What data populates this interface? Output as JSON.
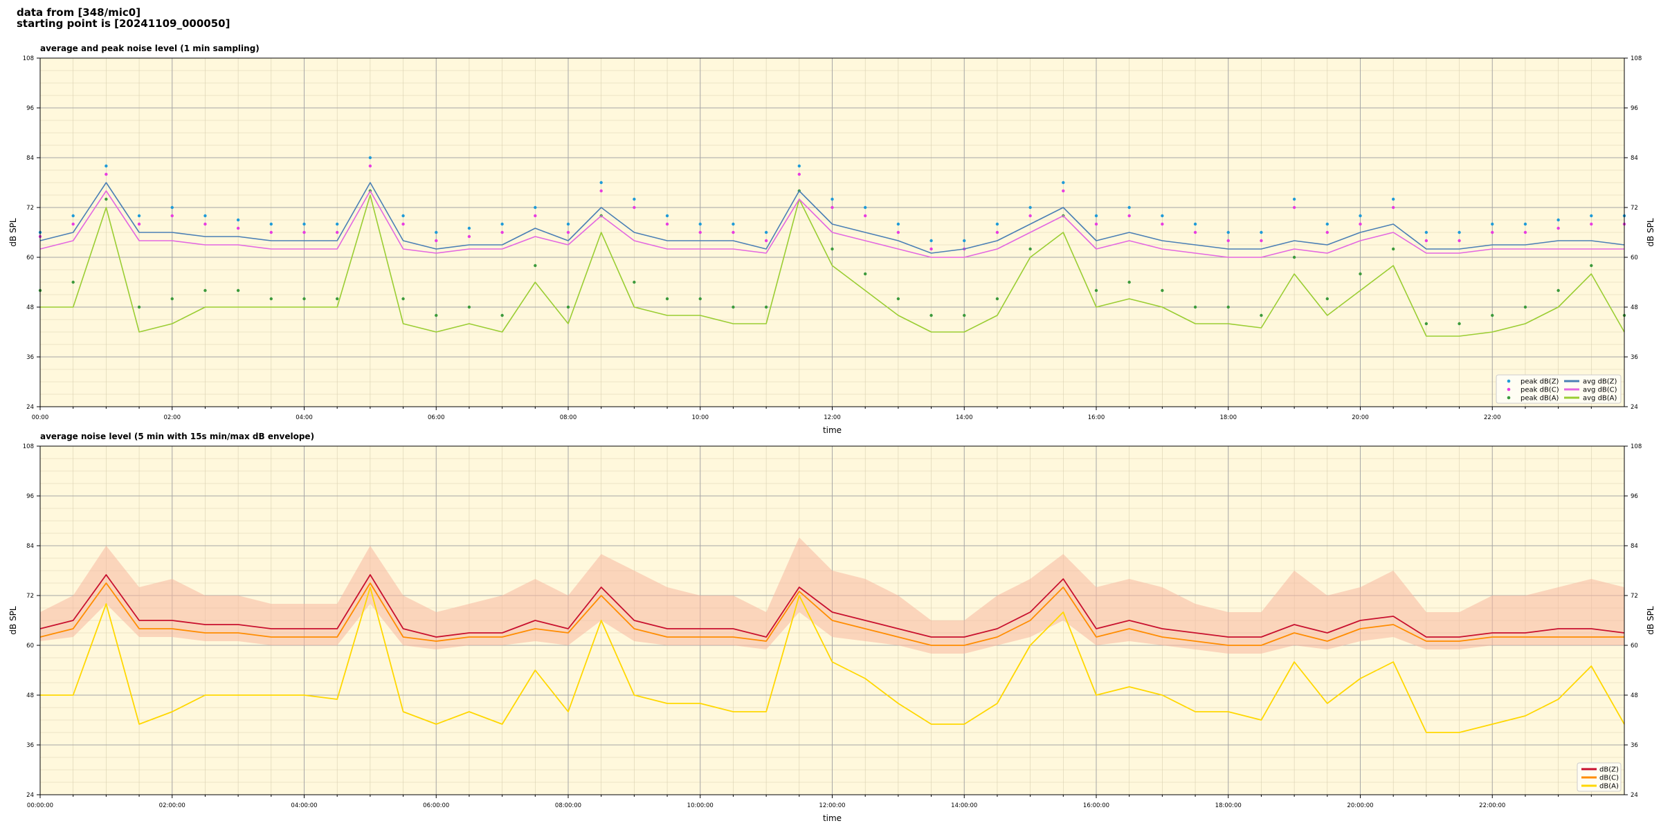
{
  "header": {
    "line1": "data from [348/mic0]",
    "line2": "starting point is [20241109_000050]"
  },
  "colors": {
    "plot_bg": "#fff8dc",
    "grid_major": "#a6a6a6",
    "grid_minor": "#d9d0b0",
    "peak_z": "#1f9bd8",
    "peak_c": "#e83ce0",
    "peak_a": "#3c9a3c",
    "avg_z": "#4a7fb5",
    "avg_c": "#e367e0",
    "avg_a": "#9acd32",
    "env_z": "#c8102e",
    "env_c": "#ff8c00",
    "env_a": "#ffd700",
    "envelope_fill": "#f7b8a0"
  },
  "chart_data": [
    {
      "type": "line",
      "title": "average and peak noise level (1 min sampling)",
      "xlabel": "time",
      "ylabel": "dB SPL",
      "xlim": [
        0,
        24
      ],
      "ylim": [
        24,
        108
      ],
      "yticks": [
        24,
        36,
        48,
        60,
        72,
        84,
        96,
        108
      ],
      "xtick_labels": [
        "00:00",
        "02:00",
        "04:00",
        "06:00",
        "08:00",
        "10:00",
        "12:00",
        "14:00",
        "16:00",
        "18:00",
        "20:00",
        "22:00"
      ],
      "grid": true,
      "legend_position": "lower-right",
      "legend": [
        "peak dB(Z)",
        "peak dB(C)",
        "peak dB(A)",
        "avg dB(Z)",
        "avg dB(C)",
        "avg dB(A)"
      ],
      "x": [
        0,
        0.5,
        1,
        1.5,
        2,
        2.5,
        3,
        3.5,
        4,
        4.5,
        5,
        5.5,
        6,
        6.5,
        7,
        7.5,
        8,
        8.5,
        9,
        9.5,
        10,
        10.5,
        11,
        11.5,
        12,
        12.5,
        13,
        13.5,
        14,
        14.5,
        15,
        15.5,
        16,
        16.5,
        17,
        17.5,
        18,
        18.5,
        19,
        19.5,
        20,
        20.5,
        21,
        21.5,
        22,
        22.5,
        23,
        23.5,
        24
      ],
      "series": [
        {
          "name": "avg dB(Z)",
          "values": [
            64,
            66,
            78,
            66,
            66,
            65,
            65,
            64,
            64,
            64,
            78,
            64,
            62,
            63,
            63,
            67,
            64,
            72,
            66,
            64,
            64,
            64,
            62,
            76,
            68,
            66,
            64,
            61,
            62,
            64,
            68,
            72,
            64,
            66,
            64,
            63,
            62,
            62,
            64,
            63,
            66,
            68,
            62,
            62,
            63,
            63,
            64,
            64,
            63
          ]
        },
        {
          "name": "avg dB(C)",
          "values": [
            62,
            64,
            76,
            64,
            64,
            63,
            63,
            62,
            62,
            62,
            76,
            62,
            61,
            62,
            62,
            65,
            63,
            70,
            64,
            62,
            62,
            62,
            61,
            74,
            66,
            64,
            62,
            60,
            60,
            62,
            66,
            70,
            62,
            64,
            62,
            61,
            60,
            60,
            62,
            61,
            64,
            66,
            61,
            61,
            62,
            62,
            62,
            62,
            62
          ]
        },
        {
          "name": "avg dB(A)",
          "values": [
            48,
            48,
            72,
            42,
            44,
            48,
            48,
            48,
            48,
            48,
            75,
            44,
            42,
            44,
            42,
            54,
            44,
            66,
            48,
            46,
            46,
            44,
            44,
            74,
            58,
            52,
            46,
            42,
            42,
            46,
            60,
            66,
            48,
            50,
            48,
            44,
            44,
            43,
            56,
            46,
            52,
            58,
            41,
            41,
            42,
            44,
            48,
            56,
            42
          ]
        },
        {
          "name": "peak dB(Z)",
          "values": [
            66,
            70,
            82,
            70,
            72,
            70,
            69,
            68,
            68,
            68,
            84,
            70,
            66,
            67,
            68,
            72,
            68,
            78,
            74,
            70,
            68,
            68,
            66,
            82,
            74,
            72,
            68,
            64,
            64,
            68,
            72,
            78,
            70,
            72,
            70,
            68,
            66,
            66,
            74,
            68,
            70,
            74,
            66,
            66,
            68,
            68,
            69,
            70,
            70
          ]
        },
        {
          "name": "peak dB(C)",
          "values": [
            65,
            68,
            80,
            68,
            70,
            68,
            67,
            66,
            66,
            66,
            82,
            68,
            64,
            65,
            66,
            70,
            66,
            76,
            72,
            68,
            66,
            66,
            64,
            80,
            72,
            70,
            66,
            62,
            62,
            66,
            70,
            76,
            68,
            70,
            68,
            66,
            64,
            64,
            72,
            66,
            68,
            72,
            64,
            64,
            66,
            66,
            67,
            68,
            68
          ]
        },
        {
          "name": "peak dB(A)",
          "values": [
            52,
            54,
            74,
            48,
            50,
            52,
            52,
            50,
            50,
            50,
            76,
            50,
            46,
            48,
            46,
            58,
            48,
            70,
            54,
            50,
            50,
            48,
            48,
            76,
            62,
            56,
            50,
            46,
            46,
            50,
            62,
            70,
            52,
            54,
            52,
            48,
            48,
            46,
            60,
            50,
            56,
            62,
            44,
            44,
            46,
            48,
            52,
            58,
            46
          ]
        }
      ]
    },
    {
      "type": "line",
      "title": "average noise level (5 min with 15s min/max dB envelope)",
      "xlabel": "time",
      "ylabel": "dB SPL",
      "xlim": [
        0,
        24
      ],
      "ylim": [
        24,
        108
      ],
      "yticks": [
        24,
        36,
        48,
        60,
        72,
        84,
        96,
        108
      ],
      "xtick_labels": [
        "00:00:00",
        "02:00:00",
        "04:00:00",
        "06:00:00",
        "08:00:00",
        "10:00:00",
        "12:00:00",
        "14:00:00",
        "16:00:00",
        "18:00:00",
        "20:00:00",
        "22:00:00"
      ],
      "grid": true,
      "legend_position": "lower-right",
      "legend": [
        "dB(Z)",
        "dB(C)",
        "dB(A)"
      ],
      "x": [
        0,
        0.5,
        1,
        1.5,
        2,
        2.5,
        3,
        3.5,
        4,
        4.5,
        5,
        5.5,
        6,
        6.5,
        7,
        7.5,
        8,
        8.5,
        9,
        9.5,
        10,
        10.5,
        11,
        11.5,
        12,
        12.5,
        13,
        13.5,
        14,
        14.5,
        15,
        15.5,
        16,
        16.5,
        17,
        17.5,
        18,
        18.5,
        19,
        19.5,
        20,
        20.5,
        21,
        21.5,
        22,
        22.5,
        23,
        23.5,
        24
      ],
      "series": [
        {
          "name": "dB(Z)",
          "values": [
            64,
            66,
            77,
            66,
            66,
            65,
            65,
            64,
            64,
            64,
            77,
            64,
            62,
            63,
            63,
            66,
            64,
            74,
            66,
            64,
            64,
            64,
            62,
            74,
            68,
            66,
            64,
            62,
            62,
            64,
            68,
            76,
            64,
            66,
            64,
            63,
            62,
            62,
            65,
            63,
            66,
            67,
            62,
            62,
            63,
            63,
            64,
            64,
            63
          ]
        },
        {
          "name": "dB(C)",
          "values": [
            62,
            64,
            75,
            64,
            64,
            63,
            63,
            62,
            62,
            62,
            75,
            62,
            61,
            62,
            62,
            64,
            63,
            72,
            64,
            62,
            62,
            62,
            61,
            73,
            66,
            64,
            62,
            60,
            60,
            62,
            66,
            74,
            62,
            64,
            62,
            61,
            60,
            60,
            63,
            61,
            64,
            65,
            61,
            61,
            62,
            62,
            62,
            62,
            62
          ]
        },
        {
          "name": "dB(A)",
          "values": [
            48,
            48,
            70,
            41,
            44,
            48,
            48,
            48,
            48,
            47,
            74,
            44,
            41,
            44,
            41,
            54,
            44,
            66,
            48,
            46,
            46,
            44,
            44,
            72,
            56,
            52,
            46,
            41,
            41,
            46,
            60,
            68,
            48,
            50,
            48,
            44,
            44,
            42,
            56,
            46,
            52,
            56,
            39,
            39,
            41,
            43,
            47,
            55,
            41
          ]
        },
        {
          "name": "envelope max",
          "values": [
            68,
            72,
            84,
            74,
            76,
            72,
            72,
            70,
            70,
            70,
            84,
            72,
            68,
            70,
            72,
            76,
            72,
            82,
            78,
            74,
            72,
            72,
            68,
            86,
            78,
            76,
            72,
            66,
            66,
            72,
            76,
            82,
            74,
            76,
            74,
            70,
            68,
            68,
            78,
            72,
            74,
            78,
            68,
            68,
            72,
            72,
            74,
            76,
            74
          ]
        },
        {
          "name": "envelope min",
          "values": [
            61,
            62,
            70,
            62,
            62,
            61,
            61,
            60,
            60,
            60,
            70,
            60,
            59,
            60,
            60,
            61,
            60,
            66,
            61,
            60,
            60,
            60,
            59,
            68,
            62,
            61,
            60,
            58,
            58,
            60,
            62,
            66,
            60,
            61,
            60,
            59,
            58,
            58,
            60,
            59,
            61,
            62,
            59,
            59,
            60,
            60,
            60,
            60,
            60
          ]
        }
      ]
    }
  ]
}
